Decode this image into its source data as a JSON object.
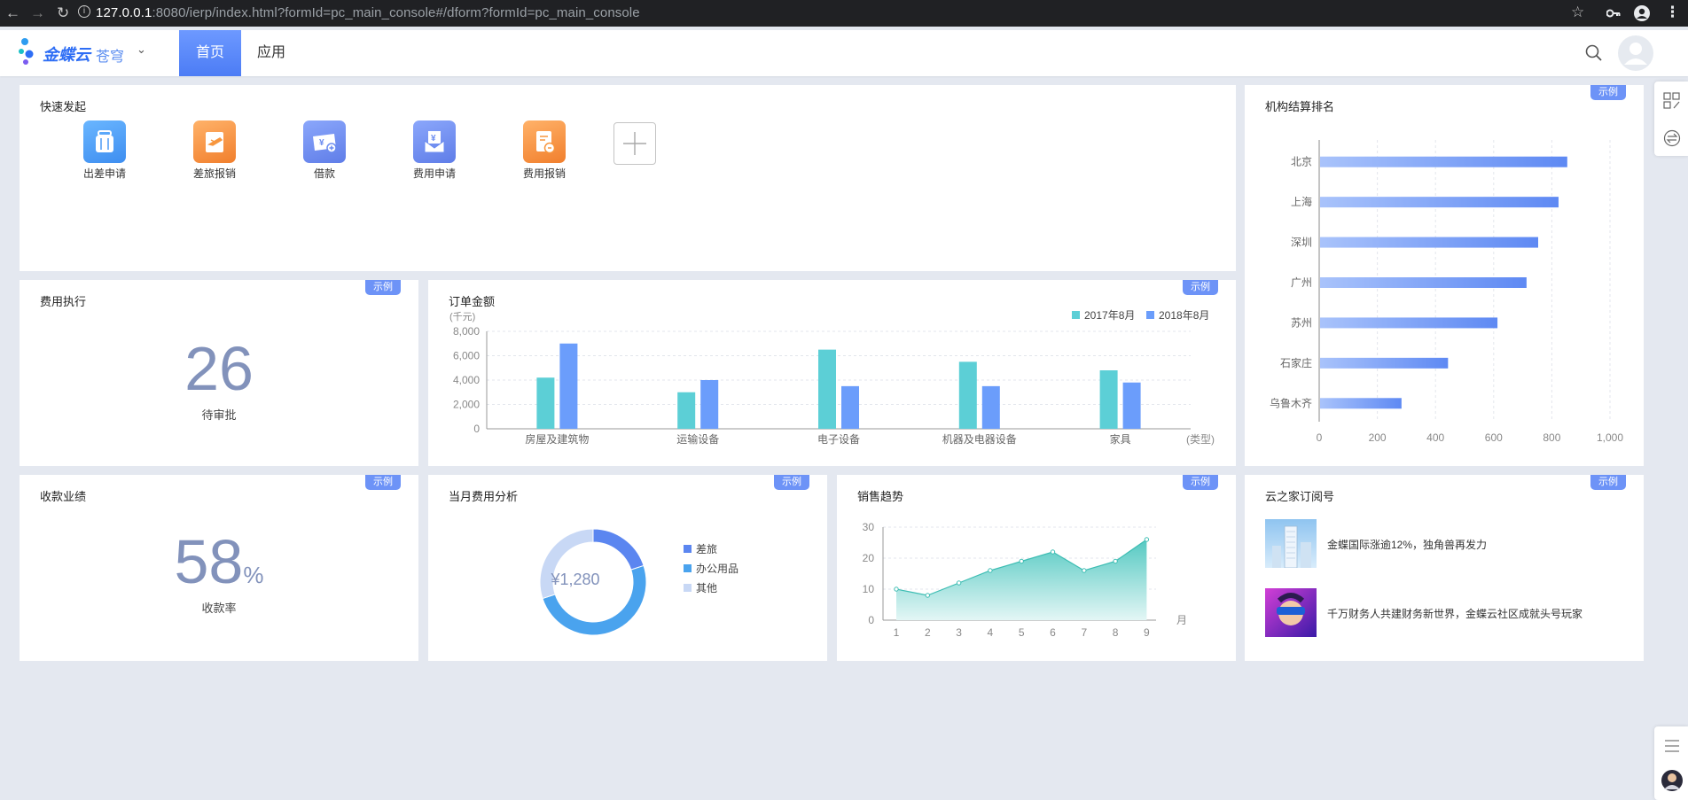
{
  "browser": {
    "url_host": "127.0.0.1",
    "url_rest": ":8080/ierp/index.html?formId=pc_main_console#/dform?formId=pc_main_console"
  },
  "header": {
    "logo_text": "金蝶云",
    "logo_sub": "苍穹",
    "nav": [
      "首页",
      "应用"
    ]
  },
  "badge_label": "示例",
  "quick_start": {
    "title": "快速发起",
    "items": [
      {
        "label": "出差申请",
        "icon": "suitcase-icon",
        "color": "#4d9cf5"
      },
      {
        "label": "差旅报销",
        "icon": "plane-ticket-icon",
        "color": "#f7963e"
      },
      {
        "label": "借款",
        "icon": "money-icon",
        "color": "#6b8cf0"
      },
      {
        "label": "费用申请",
        "icon": "yuan-doc-icon",
        "color": "#6b8cf0"
      },
      {
        "label": "费用报销",
        "icon": "receipt-icon",
        "color": "#f7963e"
      }
    ],
    "add_label": "+"
  },
  "org_ranking": {
    "title": "机构结算排名",
    "chart_data": {
      "type": "bar",
      "orientation": "horizontal",
      "categories": [
        "北京",
        "上海",
        "深圳",
        "广州",
        "苏州",
        "石家庄",
        "乌鲁木齐"
      ],
      "values": [
        850,
        820,
        750,
        710,
        610,
        440,
        280
      ],
      "xlim": [
        0,
        1000
      ],
      "xticks": [
        "0",
        "200",
        "400",
        "600",
        "800",
        "1,000"
      ],
      "grid": true
    }
  },
  "expense_exec": {
    "title": "费用执行",
    "value": "26",
    "label": "待审批"
  },
  "order_amount": {
    "title": "订单金额",
    "chart_data": {
      "type": "bar",
      "ylabel": "(千元)",
      "xlabel": "(类型)",
      "categories": [
        "房屋及建筑物",
        "运输设备",
        "电子设备",
        "机器及电器设备",
        "家具"
      ],
      "series": [
        {
          "name": "2017年8月",
          "values": [
            4200,
            3000,
            6500,
            5500,
            4800
          ],
          "color": "#5ccfd6"
        },
        {
          "name": "2018年8月",
          "values": [
            7000,
            4000,
            3500,
            3500,
            3800
          ],
          "color": "#6b9dfb"
        }
      ],
      "ylim": [
        0,
        8000
      ],
      "yticks": [
        "0",
        "2,000",
        "4,000",
        "6,000",
        "8,000"
      ],
      "legend": "top-right"
    }
  },
  "collection": {
    "title": "收款业绩",
    "value": "58",
    "unit": "%",
    "label": "收款率"
  },
  "monthly_expense": {
    "title": "当月费用分析",
    "center_label": "¥1,280",
    "chart_data": {
      "type": "pie",
      "labels": [
        "差旅",
        "办公用品",
        "其他"
      ],
      "values": [
        20,
        50,
        30
      ],
      "colors": [
        "#5b86f0",
        "#4aa3ee",
        "#c8d8f5"
      ]
    }
  },
  "sales_trend": {
    "title": "销售趋势",
    "chart_data": {
      "type": "area",
      "x": [
        1,
        2,
        3,
        4,
        5,
        6,
        7,
        8,
        9
      ],
      "values": [
        10,
        8,
        12,
        16,
        19,
        22,
        16,
        19,
        26
      ],
      "ylim": [
        0,
        30
      ],
      "yticks": [
        "0",
        "10",
        "20",
        "30"
      ],
      "xlabel": "月"
    }
  },
  "subscription": {
    "title": "云之家订阅号",
    "items": [
      {
        "text": "金蝶国际涨逾12%，独角兽再发力"
      },
      {
        "text": "千万财务人共建财务新世界，金蝶云社区成就头号玩家"
      }
    ]
  }
}
